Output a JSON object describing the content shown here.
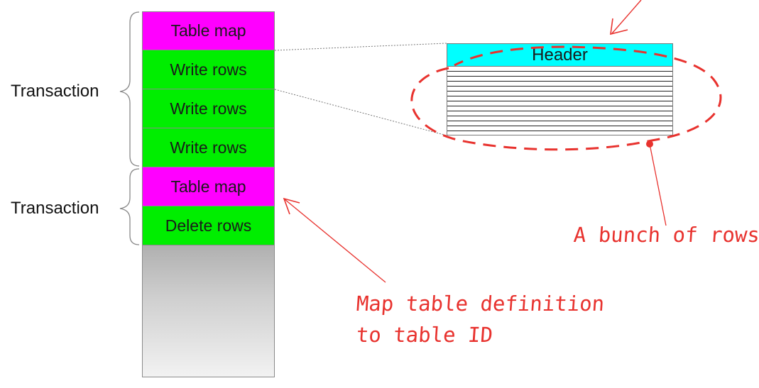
{
  "stack": {
    "blocks": [
      {
        "label": "Table map",
        "color": "#ff00ff"
      },
      {
        "label": "Write rows",
        "color": "#00ee00"
      },
      {
        "label": "Write rows",
        "color": "#00ee00"
      },
      {
        "label": "Write rows",
        "color": "#00ee00"
      },
      {
        "label": "Table map",
        "color": "#ff00ff"
      },
      {
        "label": "Delete rows",
        "color": "#00ee00"
      }
    ]
  },
  "transactions": [
    {
      "label": "Transaction"
    },
    {
      "label": "Transaction"
    }
  ],
  "event_detail": {
    "header_label": "Header",
    "header_color": "#00ffff"
  },
  "annotations": {
    "rows_note": "A bunch of rows",
    "map_note_line1": "Map table definition",
    "map_note_line2": "to table ID",
    "ink_color": "#e8322e"
  }
}
